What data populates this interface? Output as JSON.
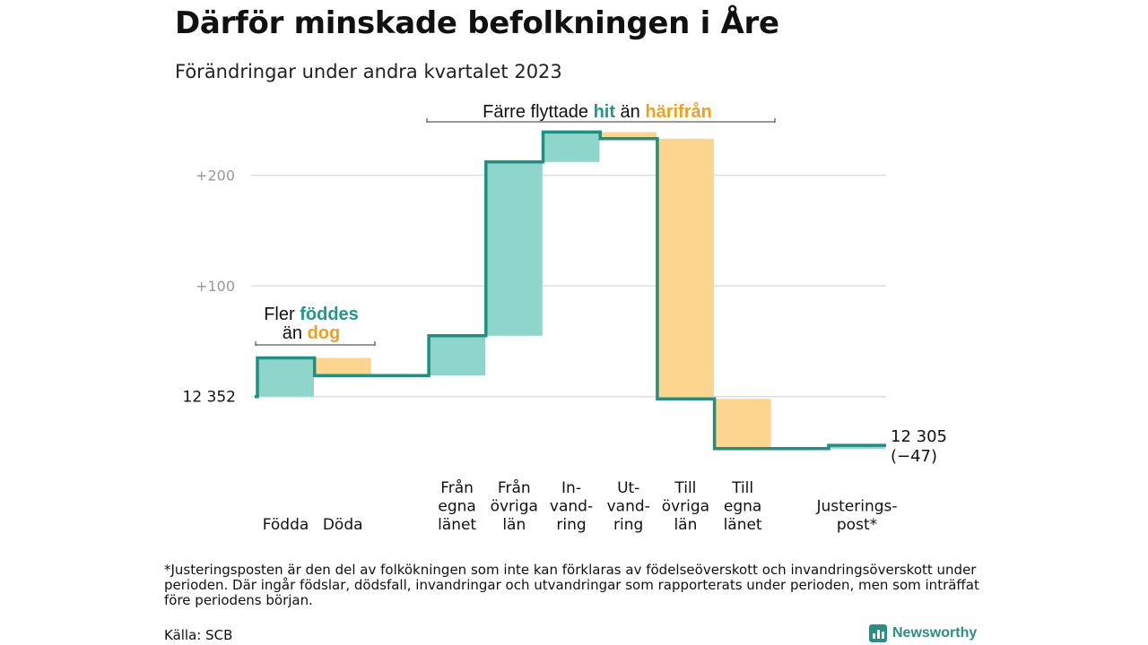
{
  "header": {
    "title": "Därför minskade befolkningen i Åre",
    "subtitle": "Förändringar under andra kvartalet 2023"
  },
  "chart_data": {
    "type": "waterfall",
    "start_value": 12352,
    "start_label": "12  352",
    "end_value": 12305,
    "end_label": "12 305",
    "end_change_label": "(−47)",
    "y_ticks": [
      {
        "value": 100,
        "label": "+100"
      },
      {
        "value": 200,
        "label": "+200"
      }
    ],
    "ylim": [
      -52,
      245
    ],
    "grid": true,
    "steps": [
      {
        "label_lines": [
          "Födda"
        ],
        "delta": 35,
        "kind": "in"
      },
      {
        "label_lines": [
          "Döda"
        ],
        "delta": -16,
        "kind": "out"
      },
      {
        "label_lines": [],
        "delta": 0,
        "kind": "gap"
      },
      {
        "label_lines": [
          "Från",
          "egna",
          "länet"
        ],
        "delta": 36,
        "kind": "in"
      },
      {
        "label_lines": [
          "Från",
          "övriga",
          "län"
        ],
        "delta": 157,
        "kind": "in"
      },
      {
        "label_lines": [
          "In-",
          "vand-",
          "ring"
        ],
        "delta": 27,
        "kind": "in"
      },
      {
        "label_lines": [
          "Ut-",
          "vand-",
          "ring"
        ],
        "delta": -6,
        "kind": "out"
      },
      {
        "label_lines": [
          "Till",
          "övriga",
          "län"
        ],
        "delta": -235,
        "kind": "out"
      },
      {
        "label_lines": [
          "Till",
          "egna",
          "länet"
        ],
        "delta": -45,
        "kind": "out"
      },
      {
        "label_lines": [],
        "delta": 0,
        "kind": "gap"
      },
      {
        "label_lines": [
          "Justerings-",
          "post*"
        ],
        "delta": 3,
        "kind": "in"
      }
    ],
    "annotations": [
      {
        "id": "birth-death",
        "parts": [
          [
            "Fler ",
            "plain"
          ],
          [
            "föddes",
            "in"
          ]
        ],
        "parts2": [
          [
            "än ",
            "plain"
          ],
          [
            "dog",
            "out"
          ]
        ]
      },
      {
        "id": "migration",
        "parts": [
          [
            "Färre flyttade ",
            "plain"
          ],
          [
            "hit",
            "in"
          ],
          [
            "  än ",
            "plain"
          ],
          [
            "härifrån",
            "out"
          ]
        ]
      }
    ],
    "colors": {
      "increase": "#8ed6cc",
      "decrease": "#fcd58f",
      "line": "#1f8f80",
      "in_text": "#1f9a8a",
      "out_text": "#efa020",
      "grid": "#dddddd",
      "tick_text": "#999999"
    }
  },
  "footnote": "*Justeringsposten är den del av folkökningen som inte kan förklaras av födelseöverskott och invandringsöverskott under perioden. Där ingår födslar, dödsfall, invandringar och utvandringar som rapporterats under perioden, men som inträffat före periodens början.",
  "source": "Källa: SCB",
  "brand": {
    "name": "Newsworthy",
    "icon": "newsworthy-logo-icon"
  }
}
